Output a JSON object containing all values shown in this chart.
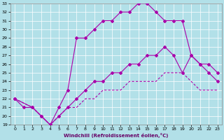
{
  "xlabel": "Windchill (Refroidissement éolien,°C)",
  "bg_color": "#b2e0e8",
  "grid_color": "#ffffff",
  "line_color": "#aa00aa",
  "xlim": [
    -0.5,
    23.5
  ],
  "ylim": [
    19,
    33
  ],
  "xticks": [
    0,
    1,
    2,
    3,
    4,
    5,
    6,
    7,
    8,
    9,
    10,
    11,
    12,
    13,
    14,
    15,
    16,
    17,
    18,
    19,
    20,
    21,
    22,
    23
  ],
  "yticks": [
    19,
    20,
    21,
    22,
    23,
    24,
    25,
    26,
    27,
    28,
    29,
    30,
    31,
    32,
    33
  ],
  "series1_x": [
    0,
    1,
    2,
    3,
    4,
    5,
    6,
    7,
    8,
    9,
    10,
    11,
    12,
    13,
    14,
    15,
    16,
    17,
    18,
    19,
    20,
    21,
    22,
    23
  ],
  "series1_y": [
    22,
    21,
    21,
    20,
    19,
    21,
    23,
    29,
    29,
    30,
    31,
    31,
    32,
    32,
    33,
    33,
    32,
    31,
    31,
    31,
    27,
    26,
    25,
    24
  ],
  "series2_x": [
    0,
    2,
    3,
    4,
    5,
    6,
    7,
    8,
    9,
    10,
    11,
    12,
    13,
    14,
    15,
    16,
    17,
    18,
    19,
    20,
    21,
    22,
    23
  ],
  "series2_y": [
    22,
    21,
    20,
    19,
    20,
    21,
    22,
    23,
    24,
    24,
    25,
    25,
    26,
    26,
    27,
    27,
    28,
    27,
    25,
    27,
    26,
    26,
    25
  ],
  "series3_x": [
    0,
    2,
    3,
    4,
    5,
    6,
    7,
    8,
    9,
    10,
    11,
    12,
    13,
    14,
    15,
    16,
    17,
    18,
    19,
    20,
    21,
    22,
    23
  ],
  "series3_y": [
    22,
    21,
    20,
    19,
    20,
    21,
    21,
    22,
    22,
    23,
    23,
    23,
    24,
    24,
    24,
    24,
    25,
    25,
    25,
    24,
    23,
    23,
    23
  ]
}
